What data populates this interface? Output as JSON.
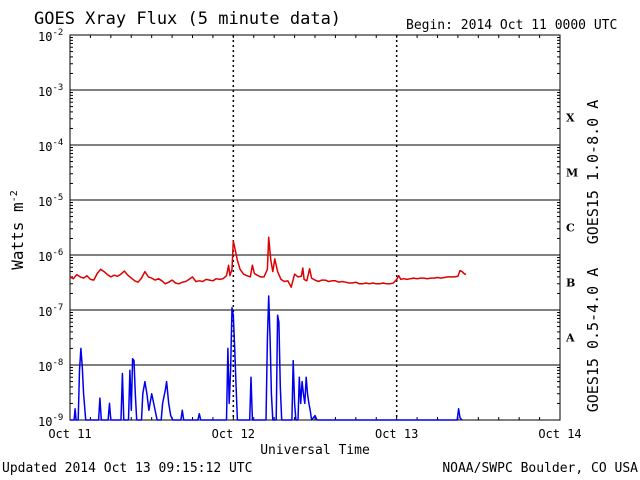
{
  "header": {
    "title": "GOES Xray Flux (5 minute data)",
    "begin": "Begin:  2014 Oct 11 0000 UTC"
  },
  "footer": {
    "updated": "Updated 2014 Oct 13 09:15:12 UTC",
    "credit": "NOAA/SWPC Boulder, CO USA"
  },
  "colors": {
    "long": "#dd0000",
    "short": "#0000ee",
    "grid": "#000000"
  },
  "chart_data": {
    "type": "line",
    "title": "GOES Xray Flux (5 minute data)",
    "xlabel": "Universal Time",
    "ylabel_main": "Watts m",
    "ylabel_exp": "-2",
    "y_scale": "log",
    "ylim": [
      1e-09,
      0.01
    ],
    "xlim": [
      0,
      72
    ],
    "x_unit": "hours since 2014 Oct 11 0000 UTC",
    "x_ticks": [
      {
        "x": 0,
        "label": "Oct 11"
      },
      {
        "x": 24,
        "label": "Oct 12"
      },
      {
        "x": 48,
        "label": "Oct 13"
      },
      {
        "x": 72,
        "label": "Oct 14"
      }
    ],
    "y_ticks": [
      {
        "exp": -9
      },
      {
        "exp": -8
      },
      {
        "exp": -7
      },
      {
        "exp": -6
      },
      {
        "exp": -5
      },
      {
        "exp": -4
      },
      {
        "exp": -3
      },
      {
        "exp": -2
      }
    ],
    "flare_classes": [
      {
        "label": "X",
        "lo": -4,
        "hi": -3
      },
      {
        "label": "M",
        "lo": -5,
        "hi": -4
      },
      {
        "label": "C",
        "lo": -6,
        "hi": -5
      },
      {
        "label": "B",
        "lo": -7,
        "hi": -6
      },
      {
        "label": "A",
        "lo": -8,
        "hi": -7
      }
    ],
    "grid": "horizontal solid at each decade, vertical dashed at day boundaries",
    "series": [
      {
        "name": "GOES15 1.0-8.0 A",
        "color": "#dd0000",
        "points": [
          [
            0,
            4e-07
          ],
          [
            0.5,
            3.7e-07
          ],
          [
            1,
            4.4e-07
          ],
          [
            1.5,
            4e-07
          ],
          [
            2,
            3.8e-07
          ],
          [
            2.5,
            4.2e-07
          ],
          [
            3,
            3.6e-07
          ],
          [
            3.5,
            3.5e-07
          ],
          [
            4,
            4.6e-07
          ],
          [
            4.5,
            5.5e-07
          ],
          [
            5,
            5e-07
          ],
          [
            5.5,
            4.4e-07
          ],
          [
            6,
            4e-07
          ],
          [
            6.5,
            4.3e-07
          ],
          [
            7,
            4.1e-07
          ],
          [
            7.5,
            4.5e-07
          ],
          [
            8,
            5.1e-07
          ],
          [
            8.5,
            4.3e-07
          ],
          [
            9,
            3.8e-07
          ],
          [
            9.5,
            3.4e-07
          ],
          [
            10,
            3.2e-07
          ],
          [
            10.5,
            3.8e-07
          ],
          [
            11,
            5e-07
          ],
          [
            11.5,
            4e-07
          ],
          [
            12,
            3.8e-07
          ],
          [
            12.5,
            3.5e-07
          ],
          [
            13,
            3.7e-07
          ],
          [
            13.5,
            3.4e-07
          ],
          [
            14,
            3e-07
          ],
          [
            14.5,
            3.2e-07
          ],
          [
            15,
            3.5e-07
          ],
          [
            15.5,
            3.1e-07
          ],
          [
            16,
            3e-07
          ],
          [
            16.5,
            3.2e-07
          ],
          [
            17,
            3.3e-07
          ],
          [
            17.5,
            3.6e-07
          ],
          [
            18,
            4e-07
          ],
          [
            18.5,
            3.3e-07
          ],
          [
            19,
            3.4e-07
          ],
          [
            19.5,
            3.3e-07
          ],
          [
            20,
            3.6e-07
          ],
          [
            20.5,
            3.5e-07
          ],
          [
            21,
            3.4e-07
          ],
          [
            21.5,
            3.7e-07
          ],
          [
            22,
            3.6e-07
          ],
          [
            22.5,
            3.7e-07
          ],
          [
            23,
            4.2e-07
          ],
          [
            23.3,
            6.5e-07
          ],
          [
            23.5,
            4.2e-07
          ],
          [
            23.8,
            5.5e-07
          ],
          [
            24,
            1.8e-06
          ],
          [
            24.3,
            1.2e-06
          ],
          [
            24.6,
            8e-07
          ],
          [
            25,
            5.5e-07
          ],
          [
            25.5,
            4.5e-07
          ],
          [
            26,
            4.2e-07
          ],
          [
            26.5,
            4e-07
          ],
          [
            26.8,
            6.5e-07
          ],
          [
            27.1,
            4.6e-07
          ],
          [
            27.5,
            4.3e-07
          ],
          [
            28,
            4e-07
          ],
          [
            28.5,
            4e-07
          ],
          [
            29.0,
            5.5e-07
          ],
          [
            29.2,
            2.1e-06
          ],
          [
            29.5,
            8e-07
          ],
          [
            29.8,
            5e-07
          ],
          [
            30.1,
            8.5e-07
          ],
          [
            30.5,
            5e-07
          ],
          [
            31,
            3.6e-07
          ],
          [
            31.5,
            3.3e-07
          ],
          [
            32,
            3.4e-07
          ],
          [
            32.5,
            2.6e-07
          ],
          [
            33,
            4.5e-07
          ],
          [
            33.5,
            4e-07
          ],
          [
            34.0,
            4.1e-07
          ],
          [
            34.2,
            5.8e-07
          ],
          [
            34.4,
            3.6e-07
          ],
          [
            34.8,
            3.4e-07
          ],
          [
            35.2,
            5.6e-07
          ],
          [
            35.5,
            3.8e-07
          ],
          [
            36,
            3.5e-07
          ],
          [
            36.5,
            3.3e-07
          ],
          [
            37,
            3.5e-07
          ],
          [
            37.5,
            3.5e-07
          ],
          [
            38,
            3.3e-07
          ],
          [
            38.5,
            3.4e-07
          ],
          [
            39,
            3.4e-07
          ],
          [
            39.5,
            3.2e-07
          ],
          [
            40,
            3.3e-07
          ],
          [
            40.5,
            3.2e-07
          ],
          [
            41,
            3.1e-07
          ],
          [
            41.5,
            3.1e-07
          ],
          [
            42,
            3.2e-07
          ],
          [
            42.5,
            3e-07
          ],
          [
            43,
            3e-07
          ],
          [
            43.5,
            3.1e-07
          ],
          [
            44,
            3e-07
          ],
          [
            44.5,
            3.1e-07
          ],
          [
            45,
            3e-07
          ],
          [
            45.5,
            3e-07
          ],
          [
            46,
            3.1e-07
          ],
          [
            46.5,
            3e-07
          ],
          [
            47,
            3e-07
          ],
          [
            47.5,
            3.1e-07
          ],
          [
            48,
            3.6e-07
          ],
          [
            48.3,
            4.2e-07
          ],
          [
            48.6,
            3.6e-07
          ],
          [
            49,
            3.7e-07
          ],
          [
            49.5,
            3.6e-07
          ],
          [
            50,
            3.7e-07
          ],
          [
            50.5,
            3.8e-07
          ],
          [
            51,
            3.7e-07
          ],
          [
            51.5,
            3.8e-07
          ],
          [
            52,
            3.8e-07
          ],
          [
            52.5,
            3.7e-07
          ],
          [
            53,
            3.8e-07
          ],
          [
            53.5,
            3.8e-07
          ],
          [
            54,
            3.9e-07
          ],
          [
            54.5,
            3.8e-07
          ],
          [
            55,
            3.9e-07
          ],
          [
            55.5,
            4e-07
          ],
          [
            56,
            4e-07
          ],
          [
            56.5,
            4e-07
          ],
          [
            57,
            4.1e-07
          ],
          [
            57.3,
            5.2e-07
          ],
          [
            57.6,
            5e-07
          ],
          [
            58,
            4.5e-07
          ],
          [
            58.2,
            4.5e-07
          ]
        ]
      },
      {
        "name": "GOES15 0.5-4.0 A",
        "color": "#0000ee",
        "points": [
          [
            0,
            1e-09
          ],
          [
            0.6,
            1e-09
          ],
          [
            0.75,
            1.6e-09
          ],
          [
            0.9,
            1e-09
          ],
          [
            1.2,
            1e-09
          ],
          [
            1.4,
            8e-09
          ],
          [
            1.6,
            2e-08
          ],
          [
            1.8,
            9e-09
          ],
          [
            2.0,
            3e-09
          ],
          [
            2.3,
            1e-09
          ],
          [
            4.2,
            1e-09
          ],
          [
            4.4,
            2.5e-09
          ],
          [
            4.6,
            1e-09
          ],
          [
            5.6,
            1e-09
          ],
          [
            5.8,
            2e-09
          ],
          [
            6.0,
            1e-09
          ],
          [
            7.5,
            1e-09
          ],
          [
            7.7,
            7e-09
          ],
          [
            7.9,
            1e-09
          ],
          [
            8.6,
            1e-09
          ],
          [
            8.8,
            8e-09
          ],
          [
            9.0,
            1.5e-09
          ],
          [
            9.2,
            1.3e-08
          ],
          [
            9.4,
            1.2e-08
          ],
          [
            9.6,
            3e-09
          ],
          [
            9.8,
            1e-09
          ],
          [
            10.5,
            1e-09
          ],
          [
            10.7,
            3e-09
          ],
          [
            11.0,
            5e-09
          ],
          [
            11.3,
            3e-09
          ],
          [
            11.6,
            1.5e-09
          ],
          [
            12.0,
            3e-09
          ],
          [
            12.3,
            2e-09
          ],
          [
            12.8,
            1e-09
          ],
          [
            13.4,
            1e-09
          ],
          [
            13.6,
            2e-09
          ],
          [
            14.0,
            3.5e-09
          ],
          [
            14.2,
            5e-09
          ],
          [
            14.5,
            2e-09
          ],
          [
            14.8,
            1.2e-09
          ],
          [
            15.1,
            1e-09
          ],
          [
            16.3,
            1e-09
          ],
          [
            16.5,
            1.5e-09
          ],
          [
            16.7,
            1e-09
          ],
          [
            18.8,
            1e-09
          ],
          [
            19.0,
            1.3e-09
          ],
          [
            19.2,
            1e-09
          ],
          [
            23.0,
            1e-09
          ],
          [
            23.2,
            2e-08
          ],
          [
            23.4,
            2e-09
          ],
          [
            23.6,
            8e-09
          ],
          [
            23.8,
            1.1e-07
          ],
          [
            24.0,
            8e-08
          ],
          [
            24.2,
            2e-08
          ],
          [
            24.4,
            4e-09
          ],
          [
            24.6,
            1e-09
          ],
          [
            26.4,
            1e-09
          ],
          [
            26.6,
            6e-09
          ],
          [
            26.8,
            1e-09
          ],
          [
            28.8,
            1e-09
          ],
          [
            29.0,
            3e-08
          ],
          [
            29.2,
            1.8e-07
          ],
          [
            29.4,
            3e-08
          ],
          [
            29.6,
            3e-09
          ],
          [
            29.8,
            1e-09
          ],
          [
            30.3,
            1e-09
          ],
          [
            30.5,
            8e-08
          ],
          [
            30.7,
            6e-08
          ],
          [
            30.9,
            4e-09
          ],
          [
            31.1,
            1e-09
          ],
          [
            32.6,
            1e-09
          ],
          [
            32.8,
            1.2e-08
          ],
          [
            33.0,
            2e-09
          ],
          [
            33.2,
            1e-09
          ],
          [
            33.5,
            1e-09
          ],
          [
            33.7,
            6e-09
          ],
          [
            33.9,
            2e-09
          ],
          [
            34.1,
            5e-09
          ],
          [
            34.3,
            3e-09
          ],
          [
            34.5,
            2e-09
          ],
          [
            34.7,
            6e-09
          ],
          [
            34.9,
            3e-09
          ],
          [
            35.1,
            2e-09
          ],
          [
            35.3,
            1.5e-09
          ],
          [
            35.5,
            1e-09
          ],
          [
            36.0,
            1.2e-09
          ],
          [
            36.3,
            1e-09
          ],
          [
            48.0,
            1e-09
          ],
          [
            56.9,
            1e-09
          ],
          [
            57.1,
            1.6e-09
          ],
          [
            57.3,
            1.1e-09
          ],
          [
            57.6,
            1e-09
          ]
        ]
      }
    ]
  }
}
